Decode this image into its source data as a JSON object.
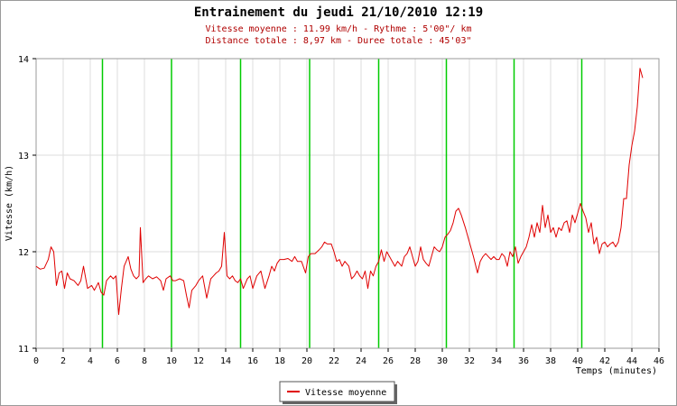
{
  "chart_data": {
    "type": "line",
    "title": "Entrainement du jeudi 21/10/2010 12:19",
    "subtitle_lines": [
      "Vitesse moyenne : 11.99 km/h - Rythme : 5'00\"/ km",
      "Distance totale : 8,97 km - Duree totale : 45'03\""
    ],
    "xlabel": "Temps (minutes)",
    "ylabel": "Vitesse (km/h)",
    "xlim": [
      0,
      46
    ],
    "ylim": [
      11,
      14
    ],
    "x_ticks": [
      0,
      2,
      4,
      6,
      8,
      10,
      12,
      14,
      16,
      18,
      20,
      22,
      24,
      26,
      28,
      30,
      32,
      34,
      36,
      38,
      40,
      42,
      44,
      46
    ],
    "y_ticks": [
      11,
      12,
      13,
      14
    ],
    "grid": true,
    "km_markers": [
      4.9,
      10.0,
      15.1,
      20.2,
      25.3,
      30.3,
      35.3,
      40.3
    ],
    "legend_position": "bottom-center",
    "colors": {
      "line": "#e00000",
      "markers": "#00cc00",
      "grid": "#dddddd",
      "frame": "#9a9a9a"
    },
    "series": [
      {
        "name": "Vitesse moyenne",
        "x": [
          0.0,
          0.3,
          0.6,
          0.9,
          1.1,
          1.3,
          1.5,
          1.7,
          1.9,
          2.1,
          2.3,
          2.5,
          2.8,
          3.1,
          3.3,
          3.5,
          3.8,
          4.1,
          4.3,
          4.6,
          4.8,
          5.0,
          5.2,
          5.5,
          5.7,
          5.9,
          6.1,
          6.3,
          6.5,
          6.8,
          7.0,
          7.2,
          7.4,
          7.6,
          7.7,
          7.9,
          8.1,
          8.3,
          8.6,
          8.9,
          9.2,
          9.4,
          9.6,
          9.9,
          10.1,
          10.3,
          10.6,
          10.9,
          11.1,
          11.3,
          11.5,
          11.8,
          12.0,
          12.3,
          12.6,
          12.9,
          13.1,
          13.3,
          13.5,
          13.7,
          13.9,
          14.1,
          14.3,
          14.5,
          14.7,
          14.9,
          15.1,
          15.3,
          15.6,
          15.8,
          16.0,
          16.3,
          16.6,
          16.9,
          17.2,
          17.4,
          17.6,
          17.8,
          18.0,
          18.3,
          18.6,
          18.9,
          19.1,
          19.3,
          19.6,
          19.9,
          20.1,
          20.3,
          20.6,
          20.9,
          21.1,
          21.3,
          21.5,
          21.8,
          22.0,
          22.2,
          22.4,
          22.6,
          22.8,
          23.1,
          23.3,
          23.5,
          23.7,
          23.9,
          24.1,
          24.3,
          24.5,
          24.7,
          24.9,
          25.1,
          25.3,
          25.5,
          25.7,
          25.9,
          26.1,
          26.3,
          26.5,
          26.7,
          27.0,
          27.2,
          27.4,
          27.6,
          27.8,
          28.0,
          28.2,
          28.4,
          28.6,
          28.8,
          29.0,
          29.2,
          29.4,
          29.6,
          29.8,
          30.0,
          30.2,
          30.4,
          30.6,
          30.8,
          31.0,
          31.2,
          31.4,
          31.7,
          32.0,
          32.3,
          32.6,
          32.8,
          33.0,
          33.2,
          33.4,
          33.6,
          33.8,
          34.0,
          34.2,
          34.4,
          34.6,
          34.8,
          35.0,
          35.2,
          35.4,
          35.6,
          35.8,
          36.0,
          36.2,
          36.4,
          36.6,
          36.8,
          37.0,
          37.2,
          37.4,
          37.6,
          37.8,
          38.0,
          38.2,
          38.4,
          38.6,
          38.8,
          39.0,
          39.2,
          39.4,
          39.6,
          39.8,
          40.0,
          40.2,
          40.4,
          40.6,
          40.8,
          41.0,
          41.2,
          41.4,
          41.6,
          41.8,
          42.0,
          42.2,
          42.4,
          42.6,
          42.8,
          43.0,
          43.2,
          43.4,
          43.6,
          43.8,
          44.0,
          44.2,
          44.4,
          44.6,
          44.8
        ],
        "values": [
          11.85,
          11.82,
          11.83,
          11.92,
          12.05,
          12.0,
          11.65,
          11.78,
          11.8,
          11.62,
          11.78,
          11.72,
          11.7,
          11.65,
          11.7,
          11.85,
          11.62,
          11.65,
          11.6,
          11.68,
          11.58,
          11.55,
          11.7,
          11.75,
          11.72,
          11.75,
          11.35,
          11.62,
          11.85,
          11.95,
          11.82,
          11.75,
          11.72,
          11.75,
          12.25,
          11.68,
          11.72,
          11.75,
          11.72,
          11.74,
          11.7,
          11.6,
          11.72,
          11.75,
          11.7,
          11.7,
          11.72,
          11.7,
          11.55,
          11.42,
          11.6,
          11.65,
          11.7,
          11.75,
          11.52,
          11.72,
          11.75,
          11.78,
          11.8,
          11.85,
          12.2,
          11.75,
          11.72,
          11.75,
          11.7,
          11.68,
          11.72,
          11.62,
          11.72,
          11.75,
          11.62,
          11.75,
          11.8,
          11.62,
          11.75,
          11.85,
          11.8,
          11.88,
          11.92,
          11.92,
          11.93,
          11.9,
          11.95,
          11.9,
          11.9,
          11.78,
          11.95,
          11.98,
          11.98,
          12.02,
          12.05,
          12.1,
          12.08,
          12.08,
          12.0,
          11.9,
          11.92,
          11.85,
          11.9,
          11.85,
          11.72,
          11.75,
          11.8,
          11.75,
          11.72,
          11.8,
          11.62,
          11.8,
          11.75,
          11.85,
          11.9,
          12.02,
          11.9,
          12.0,
          11.95,
          11.9,
          11.85,
          11.9,
          11.85,
          11.95,
          11.98,
          12.05,
          11.95,
          11.85,
          11.9,
          12.05,
          11.92,
          11.88,
          11.85,
          11.95,
          12.05,
          12.02,
          12.0,
          12.05,
          12.15,
          12.18,
          12.22,
          12.3,
          12.42,
          12.45,
          12.38,
          12.25,
          12.1,
          11.95,
          11.78,
          11.9,
          11.95,
          11.98,
          11.95,
          11.92,
          11.95,
          11.92,
          11.92,
          11.98,
          11.95,
          11.85,
          12.0,
          11.95,
          12.05,
          11.88,
          11.95,
          12.0,
          12.05,
          12.15,
          12.28,
          12.15,
          12.3,
          12.2,
          12.48,
          12.25,
          12.38,
          12.2,
          12.25,
          12.15,
          12.25,
          12.22,
          12.3,
          12.32,
          12.2,
          12.38,
          12.3,
          12.4,
          12.5,
          12.42,
          12.35,
          12.2,
          12.3,
          12.08,
          12.15,
          11.98,
          12.08,
          12.1,
          12.05,
          12.08,
          12.1,
          12.05,
          12.1,
          12.25,
          12.55,
          12.55,
          12.9,
          13.1,
          13.25,
          13.5,
          13.9,
          13.8
        ]
      }
    ]
  }
}
